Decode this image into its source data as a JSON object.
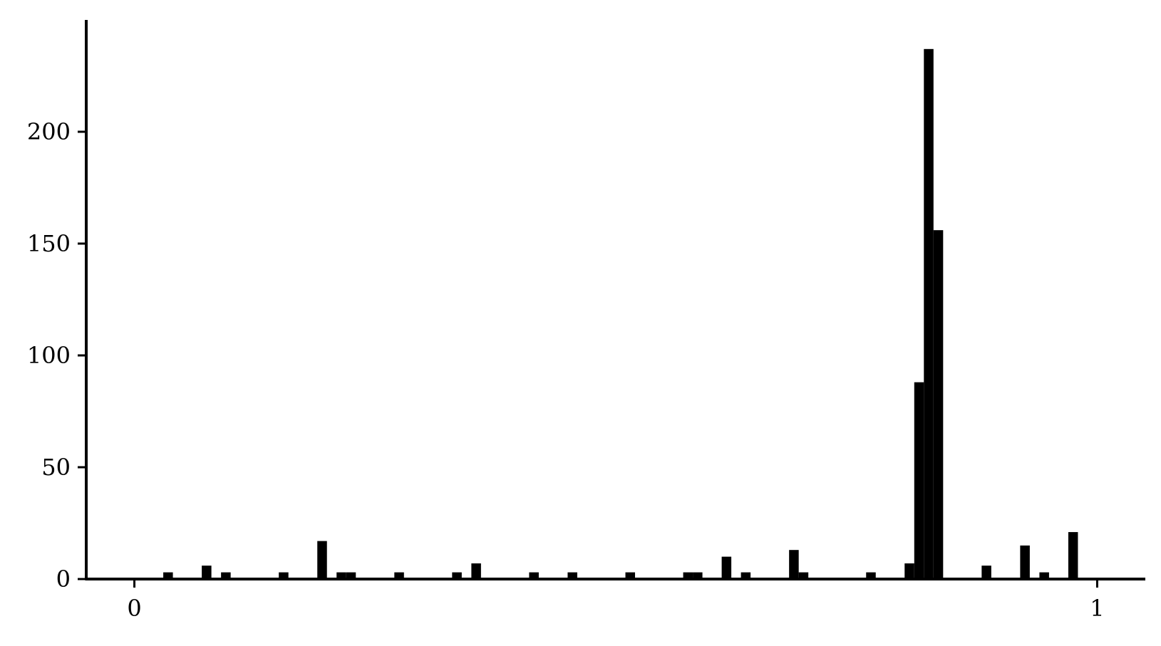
{
  "chart_data": {
    "type": "bar",
    "title": "",
    "xlabel": "",
    "ylabel": "",
    "xlim": [
      -0.05,
      1.05
    ],
    "ylim": [
      0,
      250
    ],
    "xticks": [
      0,
      1
    ],
    "xtick_labels": [
      "0",
      "1"
    ],
    "yticks": [
      0,
      50,
      100,
      150,
      200
    ],
    "ytick_labels": [
      "0",
      "50",
      "100",
      "150",
      "200"
    ],
    "bin_width": 0.01,
    "grid": false,
    "legend": "none",
    "bar_color": "#000000",
    "bins": [
      {
        "x": 0.03,
        "value": 3
      },
      {
        "x": 0.07,
        "value": 6
      },
      {
        "x": 0.09,
        "value": 3
      },
      {
        "x": 0.15,
        "value": 3
      },
      {
        "x": 0.19,
        "value": 17
      },
      {
        "x": 0.21,
        "value": 3
      },
      {
        "x": 0.22,
        "value": 3
      },
      {
        "x": 0.27,
        "value": 3
      },
      {
        "x": 0.33,
        "value": 3
      },
      {
        "x": 0.35,
        "value": 7
      },
      {
        "x": 0.41,
        "value": 3
      },
      {
        "x": 0.45,
        "value": 3
      },
      {
        "x": 0.51,
        "value": 3
      },
      {
        "x": 0.57,
        "value": 3
      },
      {
        "x": 0.58,
        "value": 3
      },
      {
        "x": 0.61,
        "value": 10
      },
      {
        "x": 0.63,
        "value": 3
      },
      {
        "x": 0.68,
        "value": 13
      },
      {
        "x": 0.69,
        "value": 3
      },
      {
        "x": 0.76,
        "value": 3
      },
      {
        "x": 0.8,
        "value": 7
      },
      {
        "x": 0.81,
        "value": 88
      },
      {
        "x": 0.82,
        "value": 237
      },
      {
        "x": 0.83,
        "value": 156
      },
      {
        "x": 0.88,
        "value": 6
      },
      {
        "x": 0.92,
        "value": 15
      },
      {
        "x": 0.94,
        "value": 3
      },
      {
        "x": 0.97,
        "value": 21
      }
    ]
  }
}
